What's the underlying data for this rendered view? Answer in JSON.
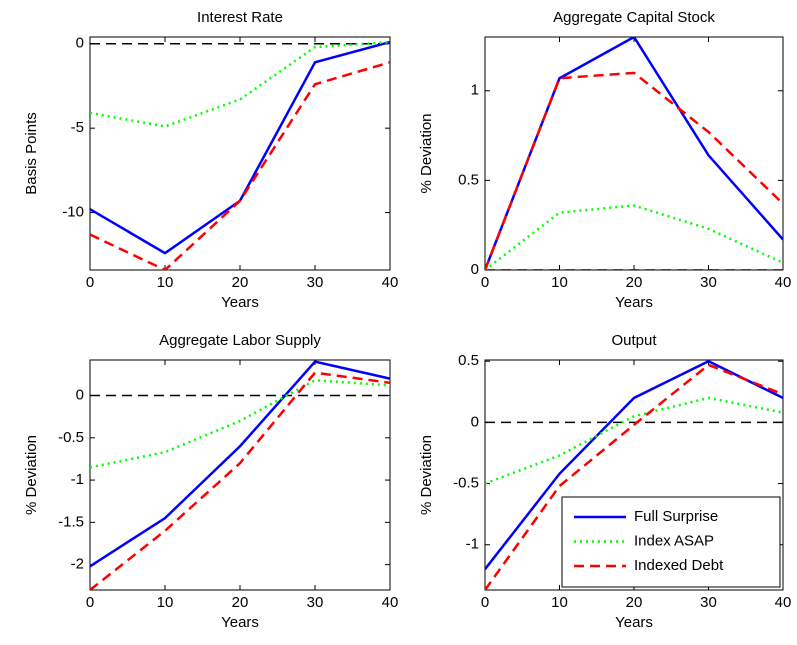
{
  "chart_data": [
    {
      "type": "line",
      "title": "Interest Rate",
      "xlabel": "Years",
      "ylabel": "Basis Points",
      "x": [
        0,
        10,
        20,
        30,
        40
      ],
      "xlim": [
        0,
        40
      ],
      "xticks": [
        0,
        10,
        20,
        30,
        40
      ],
      "ylim": [
        -13.4,
        0.4
      ],
      "yticks": [
        -10,
        -5,
        0
      ],
      "hline": 0,
      "series": [
        {
          "color": "#0000ff",
          "style": "solid",
          "values": [
            -9.8,
            -12.4,
            -9.3,
            -1.1,
            0.1
          ]
        },
        {
          "color": "#00ff00",
          "style": "dotted",
          "values": [
            -4.1,
            -4.9,
            -3.3,
            -0.2,
            0.1
          ]
        },
        {
          "color": "#ff0000",
          "style": "dashed",
          "values": [
            -11.3,
            -13.4,
            -9.3,
            -2.4,
            -1.1
          ]
        }
      ]
    },
    {
      "type": "line",
      "title": "Aggregate Capital Stock",
      "xlabel": "Years",
      "ylabel": "% Deviation",
      "x": [
        0,
        10,
        20,
        30,
        40
      ],
      "xlim": [
        0,
        40
      ],
      "xticks": [
        0,
        10,
        20,
        30,
        40
      ],
      "ylim": [
        0,
        1.3
      ],
      "yticks": [
        0,
        0.5,
        1
      ],
      "hline": 0,
      "series": [
        {
          "color": "#0000ff",
          "style": "solid",
          "values": [
            0,
            1.07,
            1.3,
            0.64,
            0.17
          ]
        },
        {
          "color": "#00ff00",
          "style": "dotted",
          "values": [
            0,
            0.32,
            0.36,
            0.23,
            0.04
          ]
        },
        {
          "color": "#ff0000",
          "style": "dashed",
          "values": [
            0,
            1.07,
            1.1,
            0.77,
            0.37
          ]
        }
      ]
    },
    {
      "type": "line",
      "title": "Aggregate Labor Supply",
      "xlabel": "Years",
      "ylabel": "% Deviation",
      "x": [
        0,
        10,
        20,
        30,
        40
      ],
      "xlim": [
        0,
        40
      ],
      "xticks": [
        0,
        10,
        20,
        30,
        40
      ],
      "ylim": [
        -2.3,
        0.42
      ],
      "yticks": [
        -2,
        -1.5,
        -1,
        -0.5,
        0
      ],
      "hline": 0,
      "series": [
        {
          "color": "#0000ff",
          "style": "solid",
          "values": [
            -2.02,
            -1.45,
            -0.6,
            0.4,
            0.2
          ]
        },
        {
          "color": "#00ff00",
          "style": "dotted",
          "values": [
            -0.85,
            -0.67,
            -0.3,
            0.18,
            0.12
          ]
        },
        {
          "color": "#ff0000",
          "style": "dashed",
          "values": [
            -2.3,
            -1.6,
            -0.8,
            0.27,
            0.15
          ]
        }
      ]
    },
    {
      "type": "line",
      "title": "Output",
      "xlabel": "Years",
      "ylabel": "% Deviation",
      "x": [
        0,
        10,
        20,
        30,
        40
      ],
      "xlim": [
        0,
        40
      ],
      "xticks": [
        0,
        10,
        20,
        30,
        40
      ],
      "ylim": [
        -1.37,
        0.51
      ],
      "yticks": [
        -1,
        -0.5,
        0,
        0.5
      ],
      "hline": 0,
      "legend_position": "lower right",
      "series": [
        {
          "name": "Full Surprise",
          "color": "#0000ff",
          "style": "solid",
          "values": [
            -1.2,
            -0.42,
            0.2,
            0.5,
            0.2
          ]
        },
        {
          "name": "Index ASAP",
          "color": "#00ff00",
          "style": "dotted",
          "values": [
            -0.5,
            -0.27,
            0.05,
            0.2,
            0.08
          ]
        },
        {
          "name": "Indexed Debt",
          "color": "#ff0000",
          "style": "dashed",
          "values": [
            -1.37,
            -0.52,
            -0.02,
            0.47,
            0.23
          ]
        }
      ]
    }
  ]
}
